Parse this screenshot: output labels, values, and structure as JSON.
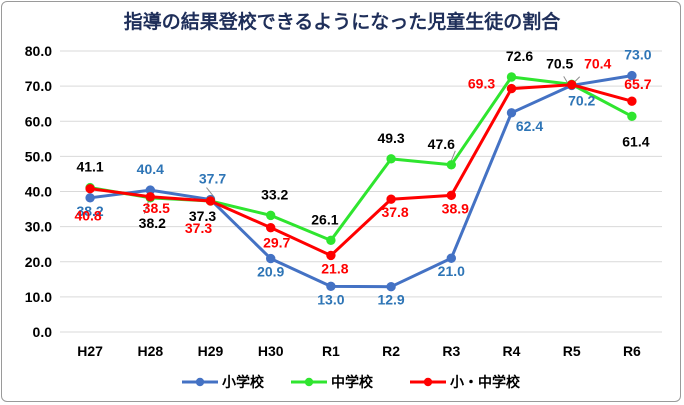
{
  "chart_data": {
    "type": "line",
    "title": "指導の結果登校できるようになった児童生徒の割合",
    "categories": [
      "H27",
      "H28",
      "H29",
      "H30",
      "R1",
      "R2",
      "R3",
      "R4",
      "R5",
      "R6"
    ],
    "ylim": [
      0,
      80
    ],
    "yticks": [
      "0.0",
      "10.0",
      "20.0",
      "30.0",
      "40.0",
      "50.0",
      "60.0",
      "70.0",
      "80.0"
    ],
    "grid": true,
    "legend_position": "bottom",
    "series": [
      {
        "name": "小学校",
        "color": "#4472c4",
        "label_color": "#2e75b6",
        "values": [
          38.2,
          40.4,
          37.7,
          20.9,
          13.0,
          12.9,
          21.0,
          62.4,
          70.2,
          73.0
        ],
        "labels": [
          "38.2",
          "40.4",
          "37.7",
          "20.9",
          "13.0",
          "12.9",
          "21.0",
          "62.4",
          "70.2",
          "73.0"
        ]
      },
      {
        "name": "中学校",
        "color": "#2fe52f",
        "label_color": "#000000",
        "values": [
          41.1,
          38.2,
          37.3,
          33.2,
          26.1,
          49.3,
          47.6,
          72.6,
          70.5,
          61.4
        ],
        "labels": [
          "41.1",
          "38.2",
          "37.3",
          "33.2",
          "26.1",
          "49.3",
          "47.6",
          "72.6",
          "70.5",
          "61.4"
        ]
      },
      {
        "name": "小・中学校",
        "color": "#ff0000",
        "label_color": "#ff0000",
        "values": [
          40.8,
          38.5,
          37.3,
          29.7,
          21.8,
          37.8,
          38.9,
          69.3,
          70.4,
          65.7
        ],
        "labels": [
          "40.8",
          "38.5",
          "37.3",
          "29.7",
          "21.8",
          "37.8",
          "38.9",
          "69.3",
          "70.4",
          "65.7"
        ]
      }
    ]
  }
}
